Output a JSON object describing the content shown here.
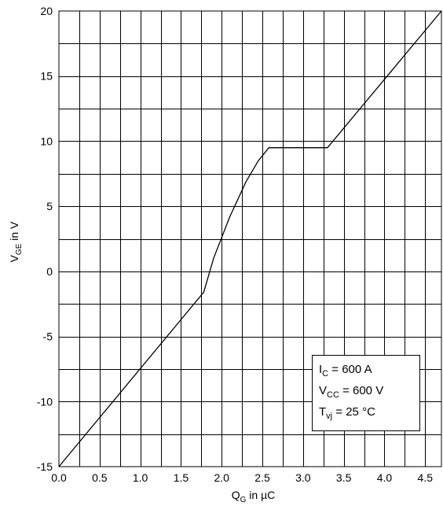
{
  "chart_data": {
    "type": "line",
    "xlabel": {
      "main": "Q",
      "sub": "G",
      "rest": " in µC"
    },
    "ylabel": {
      "main": "V",
      "sub": "GE",
      "rest": " in V"
    },
    "xlim": [
      0,
      4.7
    ],
    "ylim": [
      -15,
      20
    ],
    "x_major_ticks": [
      0,
      0.5,
      1,
      1.5,
      2,
      2.5,
      3,
      3.5,
      4,
      4.5
    ],
    "x_tick_labels": [
      "0.0",
      "0.5",
      "1.0",
      "1.5",
      "2.0",
      "2.5",
      "3.0",
      "3.5",
      "4.0",
      "4.5"
    ],
    "x_grid_step": 0.25,
    "y_major_ticks": [
      -15,
      -10,
      -5,
      0,
      5,
      10,
      15,
      20
    ],
    "y_tick_labels": [
      "-15",
      "-10",
      "-5",
      "0",
      "5",
      "10",
      "15",
      "20"
    ],
    "y_grid_step": 2.5,
    "grid": true,
    "legend_position": "bottom-right",
    "annotations": [
      {
        "main": "I",
        "sub": "C",
        "rest": " = 600 A"
      },
      {
        "main": "V",
        "sub": "CC",
        "rest": " = 600 V"
      },
      {
        "main": "T",
        "sub": "vj",
        "rest": " = 25 °C"
      }
    ],
    "series": [
      {
        "x": [
          0.0,
          1.78,
          1.9,
          2.1,
          2.3,
          2.45,
          2.58,
          3.3,
          4.7
        ],
        "y": [
          -15.0,
          -1.6,
          1.0,
          4.2,
          6.9,
          8.5,
          9.5,
          9.5,
          20.0
        ]
      }
    ]
  }
}
